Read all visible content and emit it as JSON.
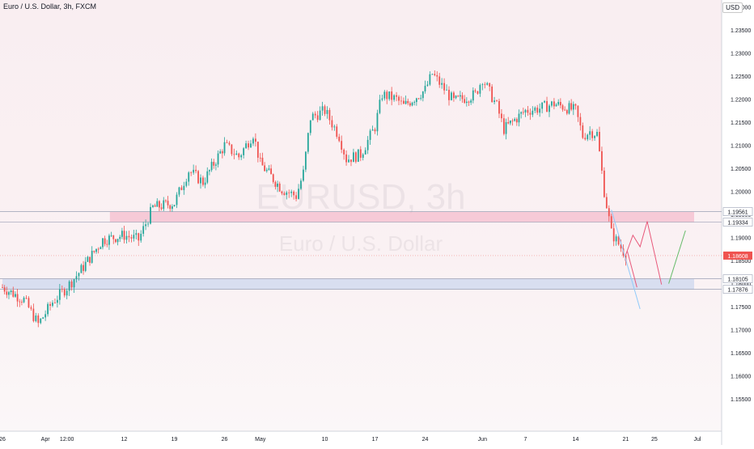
{
  "header": {
    "symbol": "Euro / U.S. Dollar, 3h, FXCM",
    "currency": "USD"
  },
  "watermark": {
    "ticker": "EURUSD, 3h",
    "name": "Euro / U.S. Dollar"
  },
  "colors": {
    "up": "#26a69a",
    "down": "#ef5350",
    "resistance_zone": "#f4b6c8",
    "support_zone": "#c6d3ee",
    "arrow_down": "#e8587a",
    "arrow_up": "#66bb6a",
    "price_badge": "#ef5350"
  },
  "chart_data": {
    "type": "candlestick",
    "title": "Euro / U.S. Dollar, 3h, FXCM",
    "ylim": [
      1.148,
      1.2415
    ],
    "y_ticks": [
      "1.24000",
      "1.23500",
      "1.23000",
      "1.22500",
      "1.22000",
      "1.21500",
      "1.21000",
      "1.20500",
      "1.20000",
      "1.19500",
      "1.19000",
      "1.18500",
      "1.18000",
      "1.17500",
      "1.17000",
      "1.16500",
      "1.16000",
      "1.15500"
    ],
    "x_ticks": [
      "26",
      "Apr",
      "12:00",
      "12",
      "19",
      "26",
      "May",
      "10",
      "17",
      "24",
      "Jun",
      "7",
      "14",
      "21",
      "25",
      "Jul"
    ],
    "price_path": [
      [
        "Mar 26",
        1.1792
      ],
      [
        "Mar 29",
        1.1765
      ],
      [
        "Mar 31",
        1.1712
      ],
      [
        "Apr 2",
        1.176
      ],
      [
        "Apr 4",
        1.1792
      ],
      [
        "Apr 6",
        1.183
      ],
      [
        "Apr 9",
        1.1895
      ],
      [
        "Apr 12",
        1.1905
      ],
      [
        "Apr 14",
        1.1895
      ],
      [
        "Apr 16",
        1.1965
      ],
      [
        "Apr 19",
        1.1975
      ],
      [
        "Apr 21",
        1.2045
      ],
      [
        "Apr 23",
        1.202
      ],
      [
        "Apr 26",
        1.21
      ],
      [
        "Apr 28",
        1.2075
      ],
      [
        "Apr 30",
        1.2125
      ],
      [
        "May 1",
        1.206
      ],
      [
        "May 4",
        1.2005
      ],
      [
        "May 6",
        1.199
      ],
      [
        "May 7",
        1.204
      ],
      [
        "May 8",
        1.216
      ],
      [
        "May 10",
        1.2175
      ],
      [
        "May 12",
        1.212
      ],
      [
        "May 13",
        1.207
      ],
      [
        "May 15",
        1.208
      ],
      [
        "May 17",
        1.214
      ],
      [
        "May 18",
        1.221
      ],
      [
        "May 20",
        1.22
      ],
      [
        "May 21",
        1.2185
      ],
      [
        "May 24",
        1.222
      ],
      [
        "May 25",
        1.2255
      ],
      [
        "May 26",
        1.2235
      ],
      [
        "May 28",
        1.2195
      ],
      [
        "May 31",
        1.221
      ],
      [
        "Jun 1",
        1.2245
      ],
      [
        "Jun 3",
        1.2185
      ],
      [
        "Jun 4",
        1.2135
      ],
      [
        "Jun 7",
        1.2175
      ],
      [
        "Jun 9",
        1.218
      ],
      [
        "Jun 11",
        1.219
      ],
      [
        "Jun 14",
        1.2175
      ],
      [
        "Jun 15",
        1.212
      ],
      [
        "Jun 16",
        1.213
      ],
      [
        "Jun 17",
        1.2125
      ],
      [
        "Jun 18",
        1.2
      ],
      [
        "Jun 19",
        1.191
      ],
      [
        "Jun 21",
        1.1862
      ]
    ],
    "zones": [
      {
        "from": 1.19334,
        "to": 1.19561,
        "start": "Apr 10",
        "label_top": "1.19561",
        "label_bottom": "1.19334"
      },
      {
        "from": 1.17876,
        "to": 1.18105,
        "start": "Mar 26",
        "label_top": "1.18105",
        "label_bottom": "1.17876"
      }
    ],
    "current_price": {
      "value": 1.18608,
      "label": "1.18608"
    }
  }
}
